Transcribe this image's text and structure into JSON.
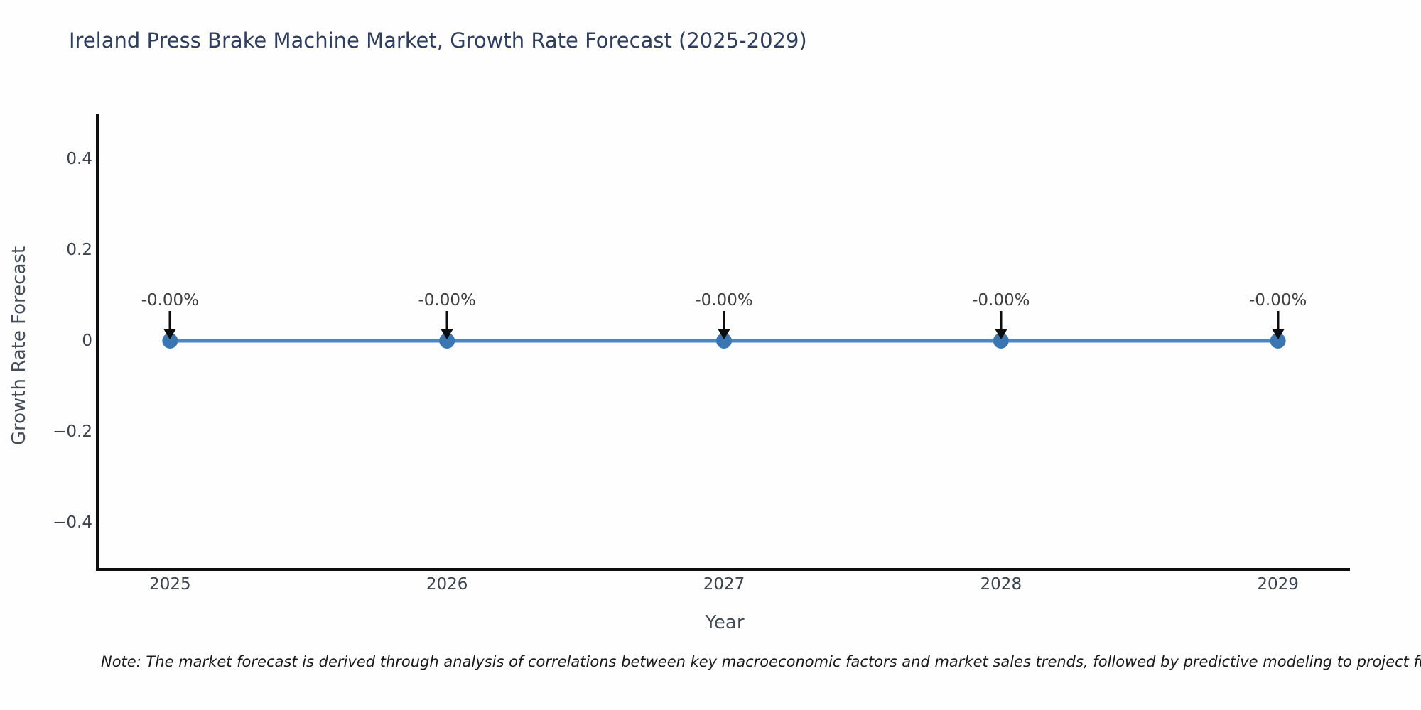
{
  "title": "Ireland Press Brake Machine Market, Growth Rate Forecast (2025-2029)",
  "note": "Note: The market forecast is derived through analysis of correlations between key macroeconomic factors and market sales trends, followed by predictive modeling to project future sal",
  "chart_data": {
    "type": "line",
    "title": "Ireland Press Brake Machine Market, Growth Rate Forecast (2025-2029)",
    "xlabel": "Year",
    "ylabel": "Growth Rate Forecast",
    "x": [
      2025,
      2026,
      2027,
      2028,
      2029
    ],
    "values": [
      0,
      0,
      0,
      0,
      0
    ],
    "point_labels": [
      "-0.00%",
      "-0.00%",
      "-0.00%",
      "-0.00%",
      "-0.00%"
    ],
    "xtick_labels": [
      "2025",
      "2026",
      "2027",
      "2028",
      "2029"
    ],
    "yticks": [
      0.4,
      0.2,
      0,
      -0.2,
      -0.4
    ],
    "ytick_labels": [
      "0.4",
      "0.2",
      "0",
      "−0.2",
      "−0.4"
    ],
    "xlim": [
      2024.74,
      2029.26
    ],
    "ylim": [
      -0.5,
      0.5
    ],
    "grid": false,
    "legend": "none",
    "colors": {
      "line": "#4e86c2",
      "marker": "#3a76b2",
      "arrow": "#0d0d0d",
      "annotation_text": "#3e3e3e",
      "title": "#2e3e5c",
      "tick_label": "#3b434e",
      "axis_label": "#434c57",
      "spine": "#0e0e0e"
    }
  }
}
